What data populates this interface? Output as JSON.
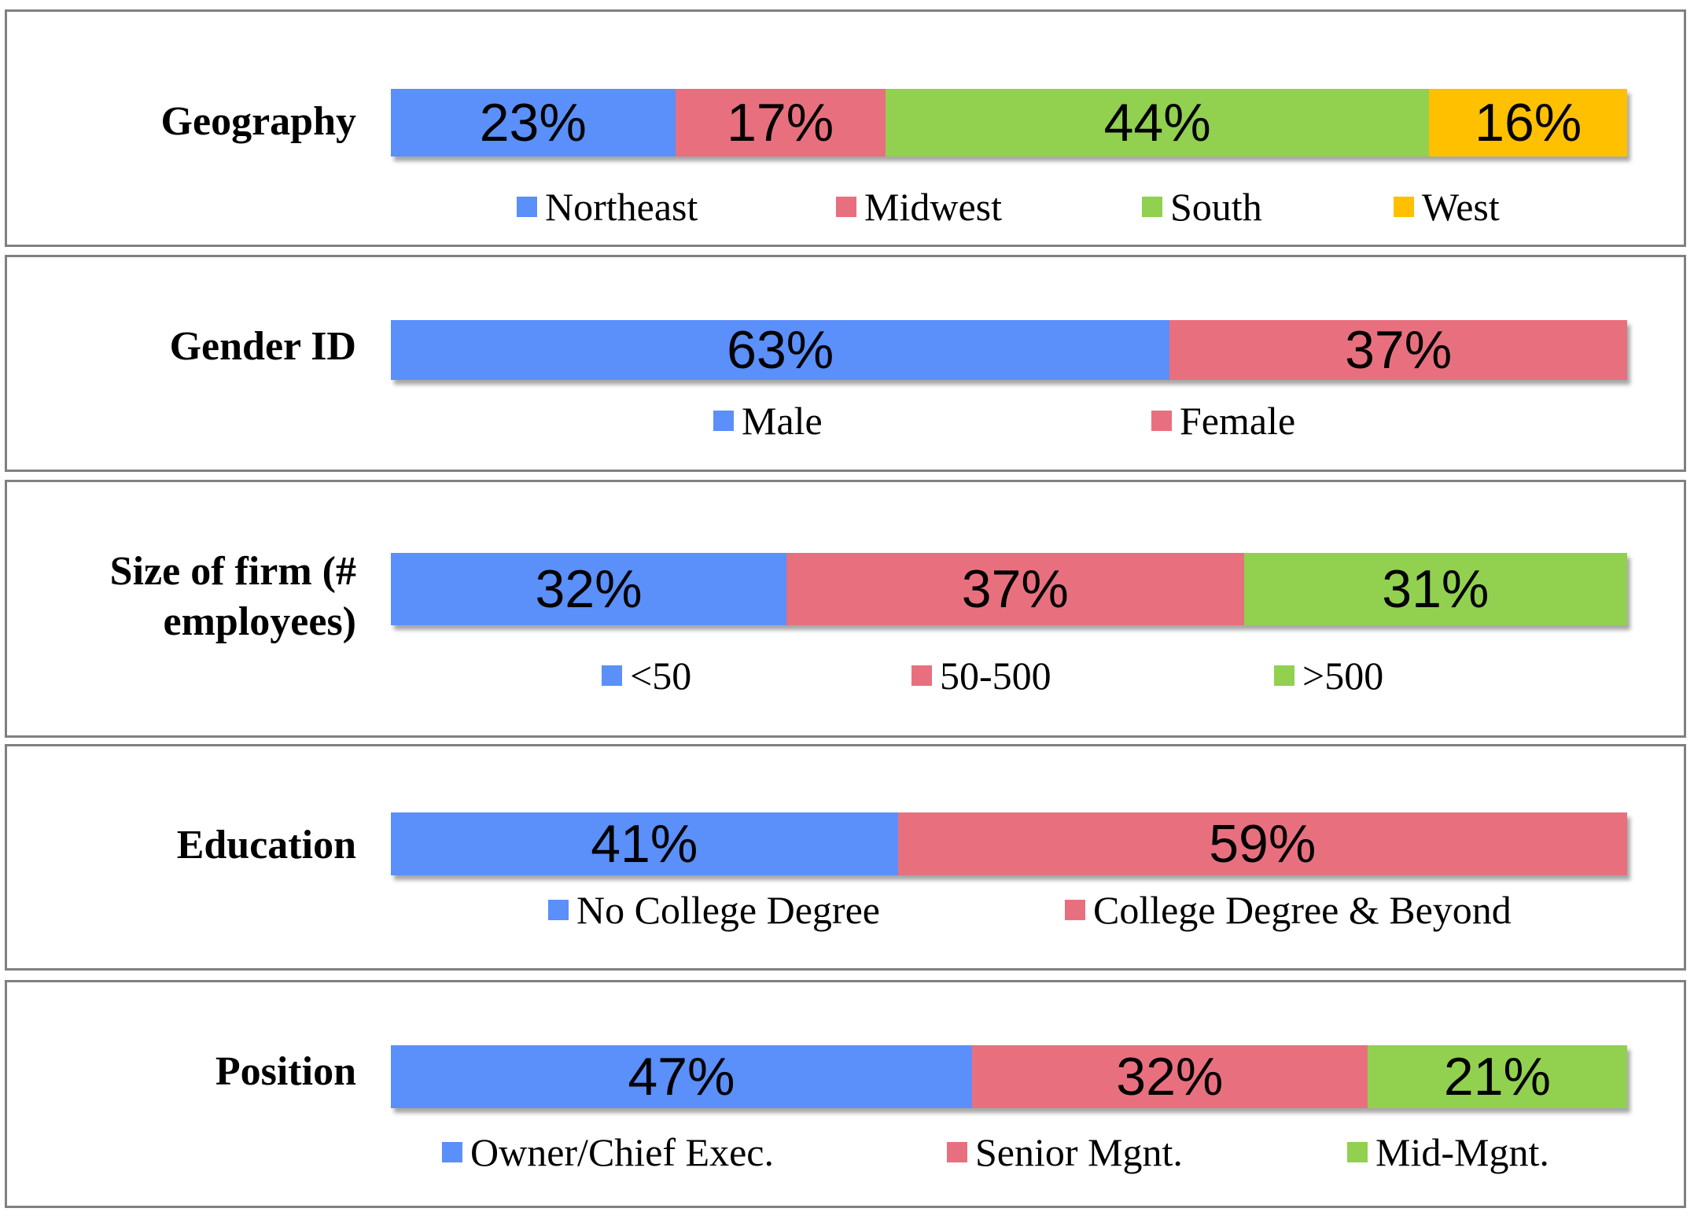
{
  "colors": {
    "blue": "#5b8ff9",
    "red": "#e8707e",
    "green": "#92d050",
    "yellow": "#ffc000"
  },
  "chart_data": [
    {
      "type": "bar",
      "stacked": "100%",
      "title": "Geography",
      "series": [
        {
          "name": "Northeast",
          "value": 23,
          "label": "23%",
          "color": "#5b8ff9"
        },
        {
          "name": "Midwest",
          "value": 17,
          "label": "17%",
          "color": "#e8707e"
        },
        {
          "name": "South",
          "value": 44,
          "label": "44%",
          "color": "#92d050"
        },
        {
          "name": "West",
          "value": 16,
          "label": "16%",
          "color": "#ffc000"
        }
      ]
    },
    {
      "type": "bar",
      "stacked": "100%",
      "title": "Gender ID",
      "series": [
        {
          "name": "Male",
          "value": 63,
          "label": "63%",
          "color": "#5b8ff9"
        },
        {
          "name": "Female",
          "value": 37,
          "label": "37%",
          "color": "#e8707e"
        }
      ]
    },
    {
      "type": "bar",
      "stacked": "100%",
      "title": "Size of firm (#\nemployees)",
      "series": [
        {
          "name": "<50",
          "value": 32,
          "label": "32%",
          "color": "#5b8ff9"
        },
        {
          "name": "50-500",
          "value": 37,
          "label": "37%",
          "color": "#e8707e"
        },
        {
          "name": ">500",
          "value": 31,
          "label": "31%",
          "color": "#92d050"
        }
      ]
    },
    {
      "type": "bar",
      "stacked": "100%",
      "title": "Education",
      "series": [
        {
          "name": "No College Degree",
          "value": 41,
          "label": "41%",
          "color": "#5b8ff9"
        },
        {
          "name": "College Degree & Beyond",
          "value": 59,
          "label": "59%",
          "color": "#e8707e"
        }
      ]
    },
    {
      "type": "bar",
      "stacked": "100%",
      "title": "Position",
      "series": [
        {
          "name": "Owner/Chief Exec.",
          "value": 47,
          "label": "47%",
          "color": "#5b8ff9"
        },
        {
          "name": "Senior Mgnt.",
          "value": 32,
          "label": "32%",
          "color": "#e8707e"
        },
        {
          "name": "Mid-Mgnt.",
          "value": 21,
          "label": "21%",
          "color": "#92d050"
        }
      ]
    }
  ]
}
